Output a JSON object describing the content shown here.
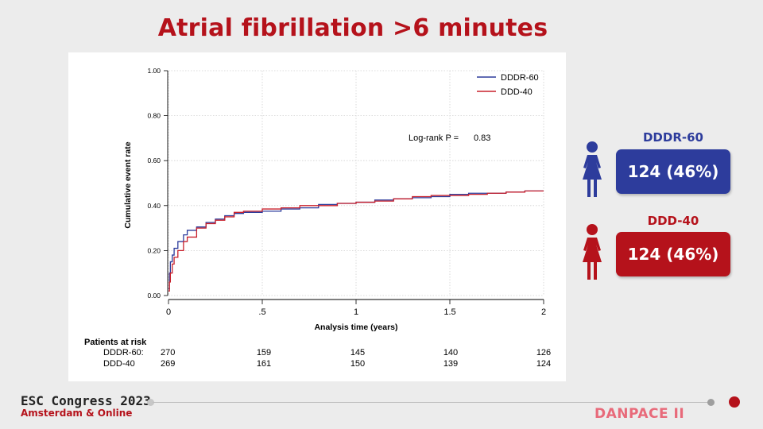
{
  "slide": {
    "title": "Atrial fibrillation >6 minutes",
    "footer_title": "ESC Congress 2023",
    "footer_subtitle": "Amsterdam & Online",
    "brand": "DANPACE II"
  },
  "colors": {
    "accent_red": "#b5121b",
    "series_blue": "#2d3c9c",
    "series_red": "#c8202c",
    "brand_pink": "#e86a7a"
  },
  "chart_data": {
    "type": "line",
    "title": "",
    "xlabel": "Analysis time (years)",
    "ylabel": "Cumulative event rate",
    "xlim": [
      0,
      2
    ],
    "ylim": [
      0,
      1
    ],
    "x_ticks": [
      0,
      0.5,
      1,
      1.5,
      2
    ],
    "x_tick_labels": [
      "0",
      ".5",
      "1",
      "1.5",
      "2"
    ],
    "y_ticks": [
      0,
      0.2,
      0.4,
      0.6,
      0.8,
      1.0
    ],
    "y_tick_labels": [
      "0.00",
      "0.20",
      "0.40",
      "0.60",
      "0.80",
      "1.00"
    ],
    "grid": true,
    "legend_position": "top-right",
    "annotation": {
      "label": "Log-rank P =",
      "value": "0.83"
    },
    "series": [
      {
        "name": "DDDR-60",
        "color": "#2d3c9c",
        "x": [
          0,
          0.005,
          0.01,
          0.02,
          0.03,
          0.05,
          0.08,
          0.1,
          0.15,
          0.2,
          0.25,
          0.3,
          0.35,
          0.4,
          0.5,
          0.6,
          0.7,
          0.8,
          0.9,
          1.0,
          1.1,
          1.2,
          1.3,
          1.4,
          1.5,
          1.6,
          1.7,
          1.8,
          1.9,
          2.0
        ],
        "y": [
          0.03,
          0.1,
          0.15,
          0.18,
          0.21,
          0.24,
          0.27,
          0.29,
          0.305,
          0.325,
          0.34,
          0.355,
          0.365,
          0.37,
          0.375,
          0.385,
          0.39,
          0.405,
          0.41,
          0.415,
          0.425,
          0.43,
          0.435,
          0.44,
          0.45,
          0.455,
          0.455,
          0.46,
          0.465,
          0.465
        ]
      },
      {
        "name": "DDD-40",
        "color": "#c8202c",
        "x": [
          0,
          0.005,
          0.01,
          0.02,
          0.03,
          0.05,
          0.08,
          0.1,
          0.15,
          0.2,
          0.25,
          0.3,
          0.35,
          0.4,
          0.5,
          0.6,
          0.7,
          0.8,
          0.9,
          1.0,
          1.1,
          1.2,
          1.3,
          1.4,
          1.5,
          1.6,
          1.7,
          1.8,
          1.9,
          2.0
        ],
        "y": [
          0.02,
          0.06,
          0.1,
          0.14,
          0.17,
          0.2,
          0.24,
          0.26,
          0.3,
          0.32,
          0.335,
          0.35,
          0.37,
          0.375,
          0.385,
          0.39,
          0.4,
          0.4,
          0.41,
          0.415,
          0.42,
          0.43,
          0.44,
          0.445,
          0.445,
          0.45,
          0.455,
          0.46,
          0.465,
          0.465
        ]
      }
    ]
  },
  "risk_table": {
    "heading": "Patients at risk",
    "rows": [
      {
        "label": "DDDR-60:",
        "values": [
          "270",
          "159",
          "145",
          "140",
          "126"
        ]
      },
      {
        "label": "DDD-40",
        "values": [
          "269",
          "161",
          "150",
          "139",
          "124"
        ]
      }
    ]
  },
  "groups": [
    {
      "name": "DDDR-60",
      "result": "124 (46%)",
      "color": "#2d3c9c"
    },
    {
      "name": "DDD-40",
      "result": "124 (46%)",
      "color": "#b5121b"
    }
  ]
}
